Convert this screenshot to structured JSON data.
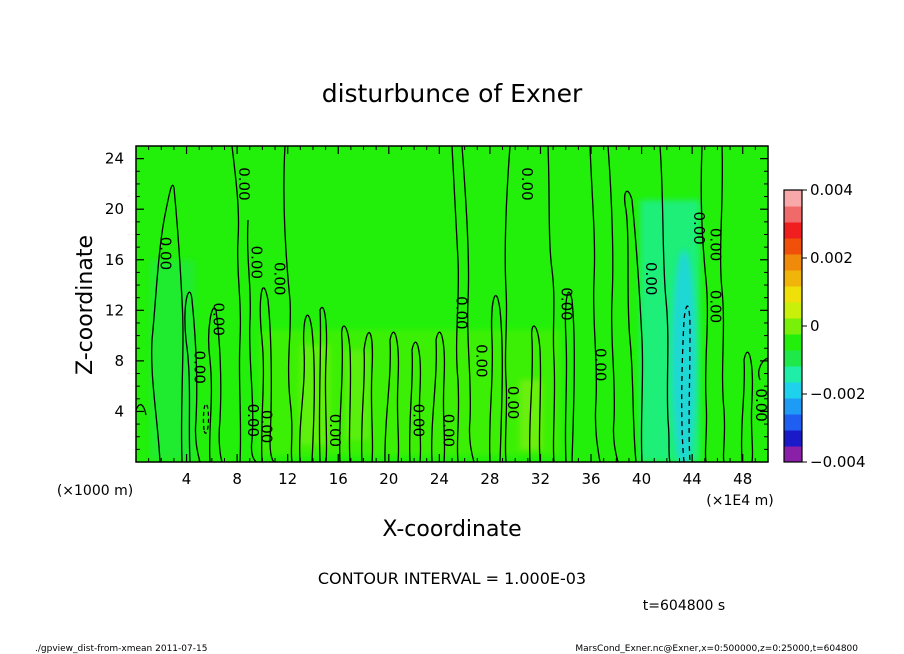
{
  "chart_data": {
    "type": "heatmap",
    "title": "disturbunce of Exner",
    "xlabel": "X-coordinate",
    "ylabel": "Z-coordinate",
    "x_unit": "(×1E4 m)",
    "y_unit": "(×1000 m)",
    "xlim": [
      0,
      50
    ],
    "ylim": [
      0,
      25
    ],
    "x_ticks": [
      "4",
      "8",
      "12",
      "16",
      "20",
      "24",
      "28",
      "32",
      "36",
      "40",
      "44",
      "48"
    ],
    "y_ticks": [
      "4",
      "8",
      "12",
      "16",
      "20",
      "24"
    ],
    "contour_interval_text": "CONTOUR INTERVAL = 1.000E-03",
    "time_text": "t=604800 s",
    "colorbar": {
      "min": -0.004,
      "max": 0.004,
      "tick_labels": [
        "0.004",
        "0.002",
        "0",
        "−0.002",
        "−0.004"
      ],
      "tick_values": [
        0.004,
        0.002,
        0,
        -0.002,
        -0.004
      ],
      "colors": [
        "#8a1fa8",
        "#1a1ac8",
        "#1e5ef0",
        "#1e9cf5",
        "#1ed2ee",
        "#1eeea8",
        "#1ee84a",
        "#22f00a",
        "#78f00a",
        "#c8f00a",
        "#f0e00a",
        "#f0b40a",
        "#f08a0a",
        "#f0500a",
        "#f01e1e",
        "#f06a6a",
        "#f8a8a8"
      ]
    },
    "contour_labels": [
      {
        "text": "0.00",
        "x": 2.3,
        "z": 16.5
      },
      {
        "text": "0.00",
        "x": 8.5,
        "z": 22.0
      },
      {
        "text": "0.00",
        "x": 9.5,
        "z": 15.8
      },
      {
        "text": "0.00",
        "x": 11.3,
        "z": 14.5
      },
      {
        "text": "0.00",
        "x": 6.5,
        "z": 11.3
      },
      {
        "text": "0.00",
        "x": 5.0,
        "z": 7.5
      },
      {
        "text": "0.00",
        "x": 9.2,
        "z": 3.3
      },
      {
        "text": "0.00",
        "x": 10.3,
        "z": 2.8
      },
      {
        "text": "0.00",
        "x": 15.7,
        "z": 2.5
      },
      {
        "text": "0.00",
        "x": 22.3,
        "z": 3.3
      },
      {
        "text": "0.00",
        "x": 24.7,
        "z": 2.5
      },
      {
        "text": "0.00",
        "x": 25.7,
        "z": 11.8
      },
      {
        "text": "0.00",
        "x": 27.3,
        "z": 8.0
      },
      {
        "text": "0.00",
        "x": 29.8,
        "z": 4.7
      },
      {
        "text": "0.00",
        "x": 30.9,
        "z": 22.0
      },
      {
        "text": "0.00",
        "x": 34.0,
        "z": 12.5
      },
      {
        "text": "0.00",
        "x": 36.7,
        "z": 7.7
      },
      {
        "text": "0.00",
        "x": 40.7,
        "z": 14.5
      },
      {
        "text": "0.00",
        "x": 44.5,
        "z": 18.5
      },
      {
        "text": "0.00",
        "x": 45.8,
        "z": 17.2
      },
      {
        "text": "0.00",
        "x": 45.8,
        "z": 12.3
      },
      {
        "text": "0.00",
        "x": 49.4,
        "z": 4.5
      }
    ]
  },
  "footer": {
    "left": "./gpview_dist-from-xmean  2011-07-15",
    "right": "MarsCond_Exner.nc@Exner,x=0:500000,z=0:25000,t=604800"
  }
}
